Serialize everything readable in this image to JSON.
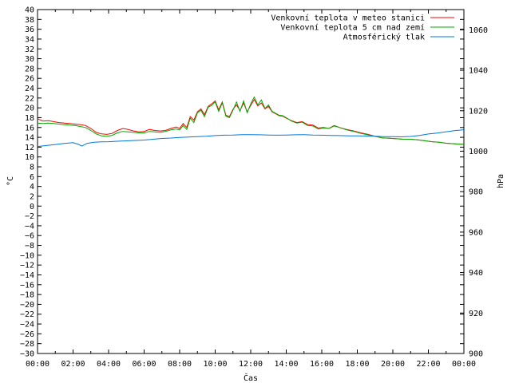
{
  "chart_data": {
    "type": "line",
    "xlabel": "Čas",
    "ylabel_left": "°C",
    "ylabel_right": "hPa",
    "xlim_hours": [
      0,
      24
    ],
    "ylim_left": [
      -30,
      40
    ],
    "ylim_right": [
      900,
      1070
    ],
    "x_ticks": [
      "00:00",
      "02:00",
      "04:00",
      "06:00",
      "08:00",
      "10:00",
      "12:00",
      "14:00",
      "16:00",
      "18:00",
      "20:00",
      "22:00",
      "00:00"
    ],
    "y_left_ticks": [
      40,
      38,
      36,
      34,
      32,
      30,
      28,
      26,
      24,
      22,
      20,
      18,
      16,
      14,
      12,
      10,
      8,
      6,
      4,
      2,
      0,
      -2,
      -4,
      -6,
      -8,
      -10,
      -12,
      -14,
      -16,
      -18,
      -20,
      -22,
      -24,
      -26,
      -28,
      -30
    ],
    "y_right_ticks": [
      1060,
      1040,
      1020,
      1000,
      980,
      960,
      940,
      920,
      900
    ],
    "grid": false,
    "legend_position": "top-right",
    "series": [
      {
        "name": "Venkovní teplota v meteo stanici",
        "color": "#ff0000",
        "axis": "left",
        "x": [
          0,
          0.3,
          0.6,
          0.9,
          1.2,
          1.5,
          1.8,
          2.1,
          2.4,
          2.7,
          3.0,
          3.3,
          3.6,
          3.9,
          4.2,
          4.5,
          4.8,
          5.1,
          5.4,
          5.7,
          6.0,
          6.3,
          6.6,
          6.9,
          7.2,
          7.5,
          7.8,
          8.0,
          8.2,
          8.4,
          8.6,
          8.8,
          9.0,
          9.2,
          9.4,
          9.6,
          9.8,
          10.0,
          10.2,
          10.4,
          10.6,
          10.8,
          11.0,
          11.2,
          11.4,
          11.6,
          11.8,
          12.0,
          12.2,
          12.4,
          12.6,
          12.8,
          13.0,
          13.2,
          13.4,
          13.6,
          13.8,
          14.0,
          14.3,
          14.6,
          14.9,
          15.2,
          15.5,
          15.8,
          16.1,
          16.4,
          16.7,
          17.0,
          17.4,
          17.8,
          18.2,
          18.6,
          19.0,
          19.4,
          19.8,
          20.2,
          20.6,
          21.0,
          21.4,
          21.8,
          22.2,
          22.6,
          23.0,
          23.4,
          23.8,
          24.0
        ],
        "y": [
          17.8,
          17.3,
          17.4,
          17.2,
          17.0,
          16.9,
          16.8,
          16.7,
          16.6,
          16.4,
          15.8,
          15.0,
          14.7,
          14.6,
          14.8,
          15.4,
          15.8,
          15.6,
          15.3,
          15.1,
          15.2,
          15.6,
          15.4,
          15.3,
          15.4,
          15.8,
          16.1,
          15.8,
          16.8,
          16.0,
          18.2,
          17.5,
          19.2,
          19.8,
          18.6,
          20.3,
          20.8,
          21.4,
          19.6,
          21.2,
          18.5,
          18.2,
          19.7,
          20.6,
          19.4,
          21.0,
          19.2,
          20.5,
          21.7,
          20.4,
          21.0,
          19.8,
          20.3,
          19.2,
          18.8,
          18.4,
          18.3,
          17.9,
          17.4,
          17.0,
          17.2,
          16.6,
          16.5,
          15.9,
          16.0,
          15.8,
          16.4,
          16.0,
          15.6,
          15.3,
          14.9,
          14.6,
          14.2,
          13.9,
          13.8,
          13.7,
          13.6,
          13.6,
          13.5,
          13.3,
          13.1,
          13.0,
          12.8,
          12.7,
          12.6,
          12.6
        ]
      },
      {
        "name": "Venkovní teplota 5 cm nad zemí",
        "color": "#00aa00",
        "axis": "left",
        "x": [
          0,
          0.3,
          0.6,
          0.9,
          1.2,
          1.5,
          1.8,
          2.1,
          2.4,
          2.7,
          3.0,
          3.3,
          3.6,
          3.9,
          4.2,
          4.5,
          4.8,
          5.1,
          5.4,
          5.7,
          6.0,
          6.3,
          6.6,
          6.9,
          7.2,
          7.5,
          7.8,
          8.0,
          8.2,
          8.4,
          8.6,
          8.8,
          9.0,
          9.2,
          9.4,
          9.6,
          9.8,
          10.0,
          10.2,
          10.4,
          10.6,
          10.8,
          11.0,
          11.2,
          11.4,
          11.6,
          11.8,
          12.0,
          12.2,
          12.4,
          12.6,
          12.8,
          13.0,
          13.2,
          13.4,
          13.6,
          13.8,
          14.0,
          14.3,
          14.6,
          14.9,
          15.2,
          15.5,
          15.8,
          16.1,
          16.4,
          16.7,
          17.0,
          17.4,
          17.8,
          18.2,
          18.6,
          19.0,
          19.4,
          19.8,
          20.2,
          20.6,
          21.0,
          21.4,
          21.8,
          22.2,
          22.6,
          23.0,
          23.4,
          23.8,
          24.0
        ],
        "y": [
          16.9,
          16.8,
          16.9,
          16.8,
          16.7,
          16.6,
          16.5,
          16.4,
          16.2,
          16.0,
          15.4,
          14.7,
          14.3,
          14.2,
          14.4,
          14.9,
          15.2,
          15.1,
          15.0,
          14.9,
          14.9,
          15.2,
          15.1,
          15.0,
          15.2,
          15.5,
          15.7,
          15.5,
          16.4,
          15.6,
          17.9,
          17.0,
          19.0,
          19.5,
          18.2,
          20.1,
          20.5,
          21.2,
          19.3,
          21.0,
          18.3,
          18.0,
          19.5,
          21.2,
          19.3,
          21.4,
          19.0,
          20.8,
          22.2,
          20.6,
          21.6,
          19.9,
          20.6,
          19.3,
          18.9,
          18.5,
          18.4,
          18.0,
          17.3,
          16.9,
          17.1,
          16.4,
          16.3,
          15.7,
          15.9,
          15.8,
          16.3,
          16.0,
          15.5,
          15.2,
          14.8,
          14.5,
          14.2,
          13.9,
          13.8,
          13.7,
          13.6,
          13.6,
          13.5,
          13.3,
          13.1,
          13.0,
          12.8,
          12.7,
          12.6,
          12.6
        ]
      },
      {
        "name": "Atmosférický tlak",
        "color": "#0078d7",
        "axis": "right",
        "x": [
          0,
          0.5,
          1.0,
          1.5,
          2.0,
          2.3,
          2.5,
          2.8,
          3.2,
          3.6,
          4.0,
          4.5,
          5.0,
          5.5,
          6.0,
          6.5,
          7.0,
          7.5,
          8.0,
          8.5,
          9.0,
          9.5,
          10.0,
          10.5,
          11.0,
          11.5,
          12.0,
          12.5,
          13.0,
          13.5,
          14.0,
          14.5,
          15.0,
          15.5,
          16.0,
          16.5,
          17.0,
          17.5,
          18.0,
          18.5,
          19.0,
          19.5,
          20.0,
          20.5,
          21.0,
          21.5,
          22.0,
          22.5,
          23.0,
          23.5,
          24.0
        ],
        "y": [
          1002.3,
          1002.8,
          1003.3,
          1003.8,
          1004.2,
          1003.4,
          1002.5,
          1003.9,
          1004.4,
          1004.6,
          1004.7,
          1004.9,
          1005.1,
          1005.3,
          1005.5,
          1005.9,
          1006.3,
          1006.5,
          1006.8,
          1007.0,
          1007.2,
          1007.4,
          1007.7,
          1007.9,
          1008.0,
          1008.2,
          1008.2,
          1008.1,
          1008.0,
          1007.9,
          1008.0,
          1008.1,
          1008.2,
          1008.0,
          1007.9,
          1007.8,
          1007.7,
          1007.6,
          1007.6,
          1007.5,
          1007.4,
          1007.2,
          1007.2,
          1007.1,
          1007.3,
          1007.8,
          1008.5,
          1009.0,
          1009.6,
          1010.2,
          1010.6
        ]
      }
    ]
  }
}
